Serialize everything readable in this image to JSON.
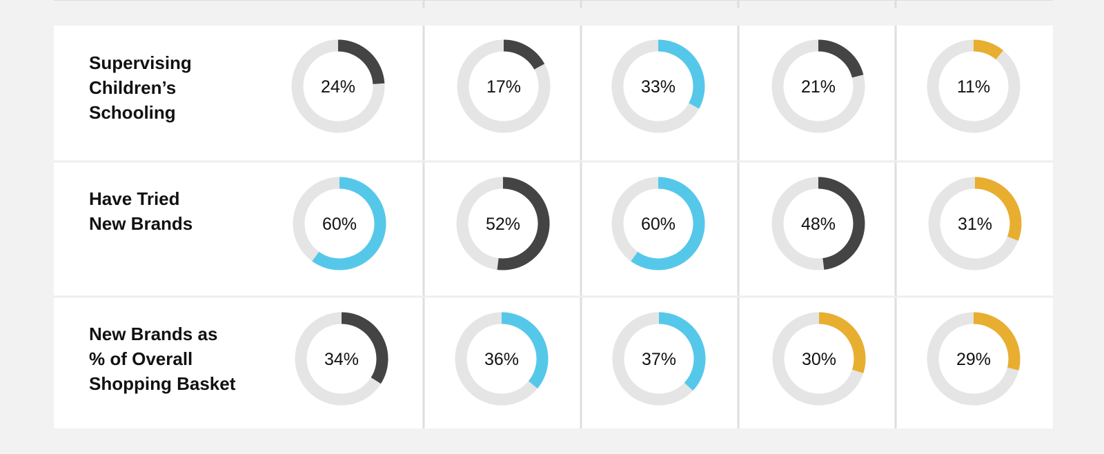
{
  "colors": {
    "page_bg": "#f2f2f2",
    "card_bg": "#ffffff",
    "divider": "#dedede",
    "row_divider": "#eeeeee",
    "ring_track": "#e4e5e4",
    "dark": "#444444",
    "blue": "#55c8ea",
    "yellow": "#e8ae30"
  },
  "chart_data": {
    "type": "donut-grid",
    "title": "",
    "rows": [
      {
        "label": "Supervising\nChildren’s\nSchooling",
        "lines": [
          "Supervising",
          "Children’s",
          "Schooling"
        ],
        "values": [
          24,
          17,
          33,
          21,
          11
        ],
        "display": [
          "24%",
          "17%",
          "33%",
          "21%",
          "11%"
        ],
        "colors": [
          "dark",
          "dark",
          "blue",
          "dark",
          "yellow"
        ]
      },
      {
        "label": "Have Tried\nNew Brands",
        "lines": [
          "Have Tried",
          "New Brands"
        ],
        "values": [
          60,
          52,
          60,
          48,
          31
        ],
        "display": [
          "60%",
          "52%",
          "60%",
          "48%",
          "31%"
        ],
        "colors": [
          "blue",
          "dark",
          "blue",
          "dark",
          "yellow"
        ]
      },
      {
        "label": "New Brands as\n% of Overall\nShopping Basket",
        "lines": [
          "New Brands as",
          "% of Overall",
          "Shopping Basket"
        ],
        "values": [
          34,
          36,
          37,
          30,
          29
        ],
        "display": [
          "34%",
          "36%",
          "37%",
          "30%",
          "29%"
        ],
        "colors": [
          "dark",
          "blue",
          "blue",
          "yellow",
          "yellow"
        ]
      }
    ]
  }
}
